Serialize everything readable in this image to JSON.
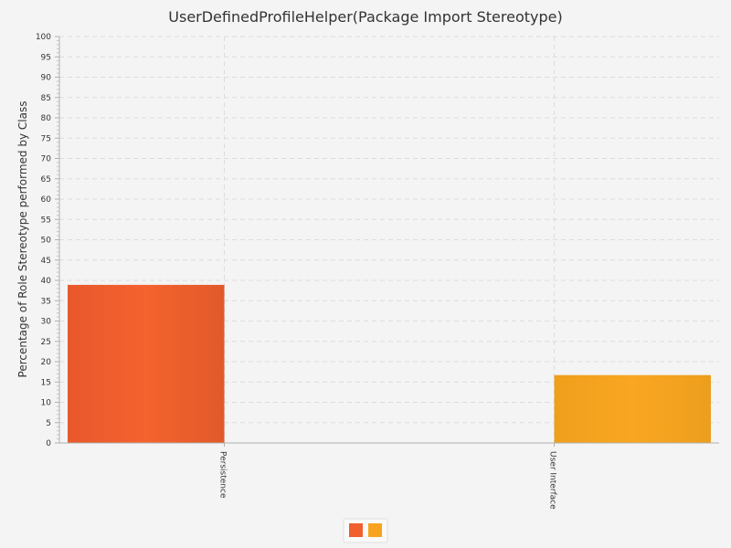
{
  "chart_data": {
    "type": "bar",
    "title": "UserDefinedProfileHelper(Package Import Stereotype)",
    "xlabel": "",
    "ylabel": "Percentage of Role Stereotype performed by Class",
    "categories": [
      "Persistence",
      "User Interface"
    ],
    "series": [
      {
        "values": [
          38.9,
          0
        ],
        "color": "#f05f2d"
      },
      {
        "values": [
          0,
          16.7
        ],
        "color": "#f8a31f"
      }
    ],
    "ylim": [
      0,
      100
    ],
    "ytick_step": 5,
    "grid": true,
    "legend": {
      "placement": "bottom",
      "swatches": [
        "#f05f2d",
        "#f8a31f"
      ]
    }
  }
}
